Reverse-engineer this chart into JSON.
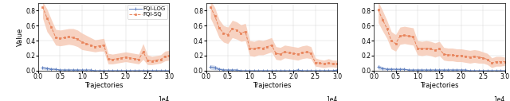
{
  "subplot1": {
    "sq_x": [
      1000,
      2000,
      3000,
      4000,
      5000,
      6000,
      7000,
      8000,
      9000,
      10000,
      11000,
      12000,
      13000,
      14000,
      15000,
      16000,
      17000,
      18000,
      19000,
      20000,
      21000,
      22000,
      23000,
      24000,
      25000,
      26000,
      27000,
      28000,
      29000,
      30000
    ],
    "sq_y": [
      0.85,
      0.7,
      0.58,
      0.44,
      0.43,
      0.44,
      0.45,
      0.44,
      0.42,
      0.38,
      0.36,
      0.34,
      0.32,
      0.33,
      0.34,
      0.16,
      0.15,
      0.16,
      0.17,
      0.18,
      0.17,
      0.16,
      0.15,
      0.25,
      0.14,
      0.13,
      0.14,
      0.15,
      0.19,
      0.2
    ],
    "sq_lo": [
      0.7,
      0.52,
      0.44,
      0.34,
      0.33,
      0.34,
      0.35,
      0.34,
      0.32,
      0.28,
      0.27,
      0.26,
      0.25,
      0.26,
      0.26,
      0.09,
      0.09,
      0.1,
      0.11,
      0.12,
      0.11,
      0.1,
      0.09,
      0.15,
      0.08,
      0.08,
      0.09,
      0.1,
      0.13,
      0.14
    ],
    "sq_hi": [
      0.92,
      0.82,
      0.68,
      0.55,
      0.54,
      0.55,
      0.56,
      0.56,
      0.54,
      0.5,
      0.47,
      0.44,
      0.41,
      0.42,
      0.43,
      0.23,
      0.22,
      0.23,
      0.24,
      0.25,
      0.24,
      0.23,
      0.22,
      0.36,
      0.21,
      0.19,
      0.2,
      0.21,
      0.26,
      0.27
    ],
    "log_x": [
      1000,
      2000,
      3000,
      4000,
      5000,
      6000,
      7000,
      8000,
      9000,
      10000,
      11000,
      12000,
      13000,
      14000,
      15000,
      16000,
      17000,
      18000,
      19000,
      20000,
      21000,
      22000,
      23000,
      24000,
      25000,
      26000,
      27000,
      28000,
      29000,
      30000
    ],
    "log_y": [
      0.04,
      0.03,
      0.02,
      0.02,
      0.01,
      0.01,
      0.01,
      0.01,
      0.01,
      0.01,
      0.01,
      0.01,
      0.0,
      0.0,
      0.0,
      0.0,
      0.0,
      0.0,
      0.0,
      0.0,
      0.0,
      0.0,
      0.0,
      0.0,
      0.0,
      0.0,
      0.0,
      0.0,
      0.0,
      0.0
    ],
    "log_lo": [
      0.02,
      0.01,
      0.01,
      0.01,
      0.0,
      0.0,
      0.0,
      0.0,
      0.0,
      0.0,
      0.0,
      0.0,
      0.0,
      0.0,
      0.0,
      0.0,
      0.0,
      0.0,
      0.0,
      0.0,
      0.0,
      0.0,
      0.0,
      0.0,
      0.0,
      0.0,
      0.0,
      0.0,
      0.0,
      0.0
    ],
    "log_hi": [
      0.06,
      0.05,
      0.04,
      0.03,
      0.02,
      0.02,
      0.02,
      0.02,
      0.02,
      0.01,
      0.01,
      0.01,
      0.01,
      0.01,
      0.01,
      0.01,
      0.01,
      0.01,
      0.01,
      0.01,
      0.01,
      0.01,
      0.01,
      0.01,
      0.01,
      0.01,
      0.01,
      0.01,
      0.01,
      0.01
    ],
    "ylabel": "Value",
    "ylim": [
      0.0,
      0.9
    ]
  },
  "subplot2": {
    "sq_x": [
      1000,
      2000,
      3000,
      4000,
      5000,
      6000,
      7000,
      8000,
      9000,
      10000,
      11000,
      12000,
      13000,
      14000,
      15000,
      16000,
      17000,
      18000,
      19000,
      20000,
      21000,
      22000,
      23000,
      24000,
      25000,
      26000,
      27000,
      28000,
      29000,
      30000
    ],
    "sq_y": [
      0.85,
      0.73,
      0.57,
      0.5,
      0.48,
      0.56,
      0.54,
      0.5,
      0.52,
      0.3,
      0.29,
      0.31,
      0.3,
      0.32,
      0.34,
      0.23,
      0.22,
      0.25,
      0.24,
      0.23,
      0.22,
      0.24,
      0.25,
      0.23,
      0.11,
      0.1,
      0.09,
      0.1,
      0.09,
      0.09
    ],
    "sq_lo": [
      0.7,
      0.58,
      0.44,
      0.38,
      0.36,
      0.44,
      0.42,
      0.39,
      0.4,
      0.2,
      0.19,
      0.21,
      0.21,
      0.23,
      0.25,
      0.15,
      0.14,
      0.17,
      0.16,
      0.15,
      0.14,
      0.16,
      0.17,
      0.16,
      0.06,
      0.05,
      0.04,
      0.05,
      0.05,
      0.04
    ],
    "sq_hi": [
      0.94,
      0.84,
      0.68,
      0.6,
      0.58,
      0.67,
      0.65,
      0.61,
      0.63,
      0.4,
      0.39,
      0.41,
      0.4,
      0.42,
      0.44,
      0.32,
      0.31,
      0.34,
      0.33,
      0.32,
      0.31,
      0.33,
      0.34,
      0.32,
      0.17,
      0.15,
      0.14,
      0.16,
      0.14,
      0.14
    ],
    "log_x": [
      1000,
      2000,
      3000,
      4000,
      5000,
      6000,
      7000,
      8000,
      9000,
      10000,
      11000,
      12000,
      13000,
      14000,
      15000,
      16000,
      17000,
      18000,
      19000,
      20000,
      21000,
      22000,
      23000,
      24000,
      25000,
      26000,
      27000,
      28000,
      29000,
      30000
    ],
    "log_y": [
      0.05,
      0.04,
      0.02,
      0.01,
      0.01,
      0.01,
      0.01,
      0.0,
      0.0,
      0.0,
      0.0,
      0.0,
      0.0,
      0.0,
      0.0,
      0.0,
      0.0,
      0.0,
      0.0,
      0.0,
      0.01,
      0.0,
      0.0,
      0.0,
      0.0,
      0.0,
      0.0,
      0.0,
      0.0,
      0.01
    ],
    "log_lo": [
      0.02,
      0.01,
      0.01,
      0.0,
      0.0,
      0.0,
      0.0,
      0.0,
      0.0,
      0.0,
      0.0,
      0.0,
      0.0,
      0.0,
      0.0,
      0.0,
      0.0,
      0.0,
      0.0,
      0.0,
      0.0,
      0.0,
      0.0,
      0.0,
      0.0,
      0.0,
      0.0,
      0.0,
      0.0,
      0.0
    ],
    "log_hi": [
      0.08,
      0.07,
      0.04,
      0.03,
      0.02,
      0.02,
      0.02,
      0.01,
      0.01,
      0.01,
      0.01,
      0.01,
      0.01,
      0.01,
      0.01,
      0.01,
      0.01,
      0.01,
      0.01,
      0.01,
      0.02,
      0.01,
      0.01,
      0.01,
      0.01,
      0.01,
      0.01,
      0.01,
      0.01,
      0.02
    ],
    "ylabel": "",
    "ylim": [
      0.0,
      0.9
    ]
  },
  "subplot3": {
    "sq_x": [
      1000,
      2000,
      3000,
      4000,
      5000,
      6000,
      7000,
      8000,
      9000,
      10000,
      11000,
      12000,
      13000,
      14000,
      15000,
      16000,
      17000,
      18000,
      19000,
      20000,
      21000,
      22000,
      23000,
      24000,
      25000,
      26000,
      27000,
      28000,
      29000,
      30000
    ],
    "sq_y": [
      0.81,
      0.68,
      0.56,
      0.4,
      0.36,
      0.46,
      0.47,
      0.46,
      0.45,
      0.3,
      0.29,
      0.3,
      0.29,
      0.27,
      0.29,
      0.22,
      0.21,
      0.21,
      0.2,
      0.2,
      0.19,
      0.18,
      0.19,
      0.18,
      0.17,
      0.15,
      0.1,
      0.12,
      0.12,
      0.12
    ],
    "sq_lo": [
      0.64,
      0.53,
      0.43,
      0.29,
      0.26,
      0.35,
      0.36,
      0.35,
      0.34,
      0.21,
      0.2,
      0.21,
      0.2,
      0.18,
      0.2,
      0.14,
      0.13,
      0.13,
      0.12,
      0.12,
      0.11,
      0.1,
      0.11,
      0.1,
      0.1,
      0.08,
      0.04,
      0.06,
      0.06,
      0.07
    ],
    "sq_hi": [
      0.92,
      0.8,
      0.67,
      0.52,
      0.48,
      0.58,
      0.59,
      0.58,
      0.57,
      0.4,
      0.39,
      0.4,
      0.39,
      0.37,
      0.39,
      0.31,
      0.3,
      0.3,
      0.29,
      0.29,
      0.28,
      0.27,
      0.28,
      0.27,
      0.25,
      0.23,
      0.17,
      0.19,
      0.19,
      0.18
    ],
    "log_x": [
      1000,
      2000,
      3000,
      4000,
      5000,
      6000,
      7000,
      8000,
      9000,
      10000,
      11000,
      12000,
      13000,
      14000,
      15000,
      16000,
      17000,
      18000,
      19000,
      20000,
      21000,
      22000,
      23000,
      24000,
      25000,
      26000,
      27000,
      28000,
      29000,
      30000
    ],
    "log_y": [
      0.05,
      0.03,
      0.02,
      0.02,
      0.02,
      0.02,
      0.02,
      0.01,
      0.01,
      0.01,
      0.01,
      0.01,
      0.01,
      0.01,
      0.01,
      0.01,
      0.01,
      0.01,
      0.01,
      0.01,
      0.01,
      0.0,
      0.0,
      0.0,
      0.0,
      0.0,
      0.0,
      0.0,
      0.0,
      0.0
    ],
    "log_lo": [
      0.02,
      0.01,
      0.01,
      0.01,
      0.01,
      0.01,
      0.01,
      0.0,
      0.0,
      0.0,
      0.0,
      0.0,
      0.0,
      0.0,
      0.0,
      0.0,
      0.0,
      0.0,
      0.0,
      0.0,
      0.0,
      0.0,
      0.0,
      0.0,
      0.0,
      0.0,
      0.0,
      0.0,
      0.0,
      0.0
    ],
    "log_hi": [
      0.08,
      0.05,
      0.04,
      0.04,
      0.03,
      0.03,
      0.03,
      0.02,
      0.02,
      0.02,
      0.02,
      0.02,
      0.02,
      0.02,
      0.02,
      0.02,
      0.02,
      0.02,
      0.02,
      0.02,
      0.02,
      0.01,
      0.01,
      0.01,
      0.01,
      0.01,
      0.01,
      0.01,
      0.01,
      0.01
    ],
    "ylabel": "",
    "ylim": [
      0.0,
      0.9
    ]
  },
  "xlabel": "Trajectories",
  "color_sq": "#E8835A",
  "color_sq_fill": "#F5C4AD",
  "color_log": "#6080C0",
  "color_log_fill": "#B0C0E0",
  "legend_labels": [
    "FQI-LOG",
    "FQI-SQ"
  ],
  "xticks": [
    0,
    5000,
    10000,
    15000,
    20000,
    25000,
    30000
  ],
  "xtick_labels": [
    "0.0",
    "0.5",
    "1.0",
    "1.5",
    "2.0",
    "2.5",
    "3.0"
  ],
  "xscale_label": "1e4",
  "yticks1": [
    0.0,
    0.2,
    0.4,
    0.6,
    0.8
  ],
  "yticks23": [
    0.0,
    0.2,
    0.4,
    0.6,
    0.8
  ]
}
